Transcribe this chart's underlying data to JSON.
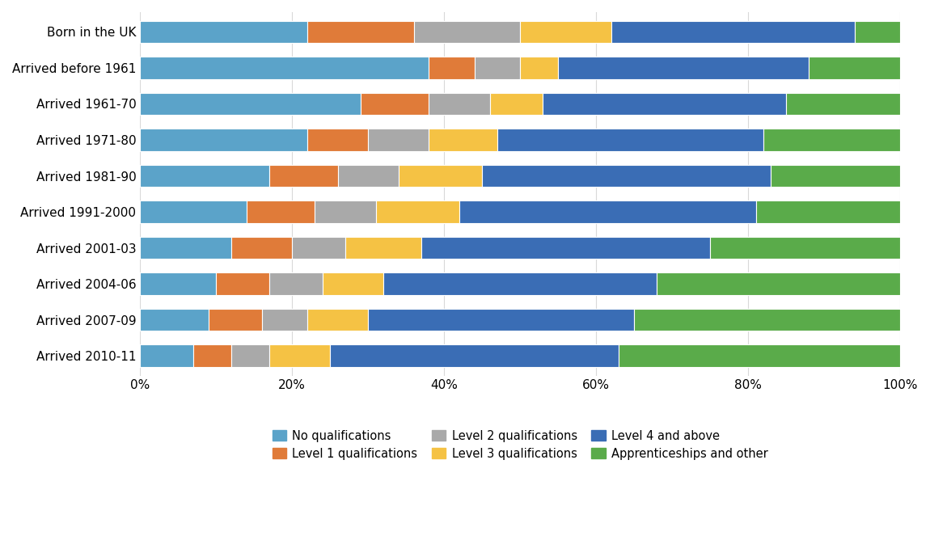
{
  "categories": [
    "Born in the UK",
    "Arrived before 1961",
    "Arrived 1961-70",
    "Arrived 1971-80",
    "Arrived 1981-90",
    "Arrived 1991-2000",
    "Arrived 2001-03",
    "Arrived 2004-06",
    "Arrived 2007-09",
    "Arrived 2010-11"
  ],
  "series": {
    "No qualifications": [
      22,
      38,
      29,
      22,
      17,
      14,
      12,
      10,
      9,
      7
    ],
    "Level 1 qualifications": [
      14,
      6,
      9,
      8,
      9,
      9,
      8,
      7,
      7,
      5
    ],
    "Level 2 qualifications": [
      14,
      6,
      8,
      8,
      8,
      8,
      7,
      7,
      6,
      5
    ],
    "Level 3 qualifications": [
      12,
      5,
      7,
      9,
      11,
      11,
      10,
      8,
      8,
      8
    ],
    "Level 4 and above": [
      32,
      33,
      32,
      35,
      38,
      39,
      38,
      36,
      35,
      38
    ],
    "Apprenticeships and other": [
      6,
      12,
      15,
      18,
      17,
      19,
      25,
      32,
      35,
      37
    ]
  },
  "colors": {
    "No qualifications": "#5BA3C9",
    "Level 1 qualifications": "#E07B39",
    "Level 2 qualifications": "#A9A9A9",
    "Level 3 qualifications": "#F5C244",
    "Level 4 and above": "#3A6DB5",
    "Apprenticeships and other": "#5AAB4A"
  },
  "xlim": [
    0,
    100
  ],
  "xtick_labels": [
    "0%",
    "20%",
    "40%",
    "60%",
    "80%",
    "100%"
  ],
  "xtick_vals": [
    0,
    20,
    40,
    60,
    80,
    100
  ],
  "background_color": "#ffffff",
  "grid_color": "#d9d9d9",
  "bar_height": 0.62,
  "figsize": [
    11.5,
    6.89
  ],
  "dpi": 100,
  "tick_fontsize": 11,
  "legend_fontsize": 10.5
}
